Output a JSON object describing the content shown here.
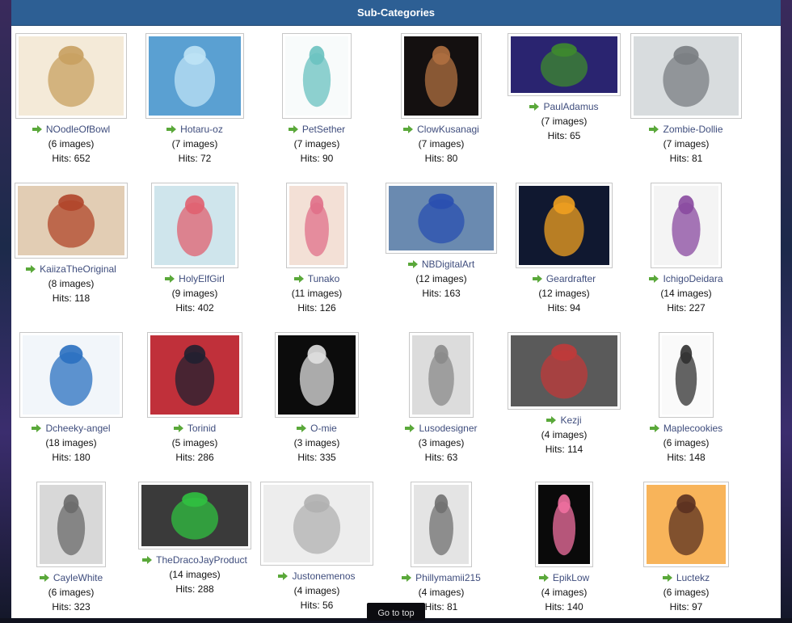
{
  "header": {
    "title": "Sub-Categories"
  },
  "go_to_top": "Go to top",
  "colors": {
    "header_bg": "#2d5f94",
    "link": "#3f4d7d",
    "arrow": "#5aa83a"
  },
  "categories": [
    {
      "name": "NOodleOfBowl",
      "images": "(6 images)",
      "hits": "Hits: 652",
      "art": "#f4ead8",
      "art2": "#c8a060"
    },
    {
      "name": "Hotaru-oz",
      "images": "(7 images)",
      "hits": "Hits: 72",
      "art": "#5aa0d2",
      "art2": "#bfe3f5"
    },
    {
      "name": "PetSether",
      "images": "(7 images)",
      "hits": "Hits: 90",
      "art": "#f8fbfb",
      "art2": "#6ac2c0"
    },
    {
      "name": "ClowKusanagi",
      "images": "(7 images)",
      "hits": "Hits: 80",
      "art": "#141010",
      "art2": "#b07040"
    },
    {
      "name": "PaulAdamus",
      "images": "(7 images)",
      "hits": "Hits: 65",
      "art": "#2a2470",
      "art2": "#3e8a2e"
    },
    {
      "name": "Zombie-Dollie",
      "images": "(7 images)",
      "hits": "Hits: 81",
      "art": "#d8dcde",
      "art2": "#7a7d82"
    },
    {
      "name": "KaiizaTheOriginal",
      "images": "(8 images)",
      "hits": "Hits: 118",
      "art": "#e2cdb4",
      "art2": "#b0452a"
    },
    {
      "name": "HolyElfGirl",
      "images": "(9 images)",
      "hits": "Hits: 402",
      "art": "#cfe5ec",
      "art2": "#e06070"
    },
    {
      "name": "Tunako",
      "images": "(11 images)",
      "hits": "Hits: 126",
      "art": "#f3e0d6",
      "art2": "#e0708a"
    },
    {
      "name": "NBDigitalArt",
      "images": "(12 images)",
      "hits": "Hits: 163",
      "art": "#6a8ab0",
      "art2": "#2a4fb0"
    },
    {
      "name": "Geardrafter",
      "images": "(12 images)",
      "hits": "Hits: 94",
      "art": "#101830",
      "art2": "#f0a020"
    },
    {
      "name": "IchigoDeidara",
      "images": "(14 images)",
      "hits": "Hits: 227",
      "art": "#f4f4f4",
      "art2": "#8a4aa0"
    },
    {
      "name": "Dcheeky-angel",
      "images": "(18 images)",
      "hits": "Hits: 180",
      "art": "#f2f6fa",
      "art2": "#2a70c0"
    },
    {
      "name": "Torinid",
      "images": "(5 images)",
      "hits": "Hits: 286",
      "art": "#c0303a",
      "art2": "#202030"
    },
    {
      "name": "O-mie",
      "images": "(3 images)",
      "hits": "Hits: 335",
      "art": "#0c0c0c",
      "art2": "#e0e0e0"
    },
    {
      "name": "Lusodesigner",
      "images": "(3 images)",
      "hits": "Hits: 63",
      "art": "#dcdcdc",
      "art2": "#8a8a8a"
    },
    {
      "name": "Kezji",
      "images": "(4 images)",
      "hits": "Hits: 114",
      "art": "#5a5a5a",
      "art2": "#c03a3a"
    },
    {
      "name": "Maplecookies",
      "images": "(6 images)",
      "hits": "Hits: 148",
      "art": "#fafafa",
      "art2": "#303030"
    },
    {
      "name": "CayleWhite",
      "images": "(6 images)",
      "hits": "Hits: 323",
      "art": "#d8d8d8",
      "art2": "#6a6a6a"
    },
    {
      "name": "TheDracoJayProduct",
      "images": "(14 images)",
      "hits": "Hits: 288",
      "art": "#3a3a3a",
      "art2": "#30c040"
    },
    {
      "name": "Justonemenos",
      "images": "(4 images)",
      "hits": "Hits: 56",
      "art": "#ededed",
      "art2": "#b0b0b0"
    },
    {
      "name": "Phillymamii215",
      "images": "(4 images)",
      "hits": "Hits: 81",
      "art": "#e4e4e4",
      "art2": "#707070"
    },
    {
      "name": "EpikLow",
      "images": "(4 images)",
      "hits": "Hits: 140",
      "art": "#0a0a0a",
      "art2": "#f070a0"
    },
    {
      "name": "Luctekz",
      "images": "(6 images)",
      "hits": "Hits: 97",
      "art": "#f8b45a",
      "art2": "#5a3020"
    }
  ]
}
